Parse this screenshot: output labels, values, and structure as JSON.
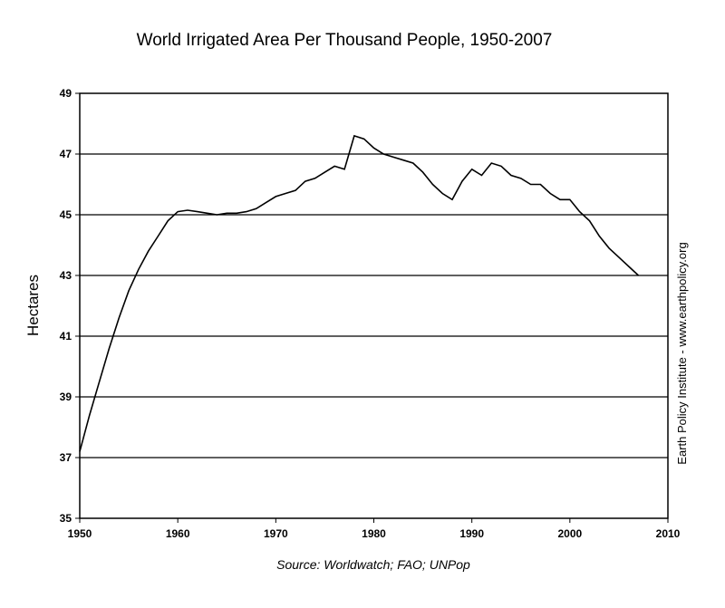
{
  "chart_data": {
    "type": "line",
    "title": "World Irrigated Area Per Thousand People, 1950-2007",
    "xlabel": "",
    "ylabel": "Hectares",
    "source": "Source: Worldwatch; FAO; UNPop",
    "credit": "Earth Policy Institute - www.earthpolicy.org",
    "xlim": [
      1950,
      2010
    ],
    "ylim": [
      35,
      49
    ],
    "x_ticks": [
      1950,
      1960,
      1970,
      1980,
      1990,
      2000,
      2010
    ],
    "y_ticks": [
      35,
      37,
      39,
      41,
      43,
      45,
      47,
      49
    ],
    "grid": "horizontal",
    "series": [
      {
        "color": "#000000",
        "x": [
          1950,
          1951,
          1952,
          1953,
          1954,
          1955,
          1956,
          1957,
          1958,
          1959,
          1960,
          1961,
          1962,
          1963,
          1964,
          1965,
          1966,
          1967,
          1968,
          1969,
          1970,
          1971,
          1972,
          1973,
          1974,
          1975,
          1976,
          1977,
          1978,
          1979,
          1980,
          1981,
          1982,
          1983,
          1984,
          1985,
          1986,
          1987,
          1988,
          1989,
          1990,
          1991,
          1992,
          1993,
          1994,
          1995,
          1996,
          1997,
          1998,
          1999,
          2000,
          2001,
          2002,
          2003,
          2004,
          2005,
          2006,
          2007
        ],
        "values": [
          37.2,
          38.4,
          39.5,
          40.6,
          41.6,
          42.5,
          43.2,
          43.8,
          44.3,
          44.8,
          45.1,
          45.15,
          45.1,
          45.05,
          45.0,
          45.05,
          45.05,
          45.1,
          45.2,
          45.4,
          45.6,
          45.7,
          45.8,
          46.1,
          46.2,
          46.4,
          46.6,
          46.5,
          47.6,
          47.5,
          47.2,
          47.0,
          46.9,
          46.8,
          46.7,
          46.4,
          46.0,
          45.7,
          45.5,
          46.1,
          46.5,
          46.3,
          46.7,
          46.6,
          46.3,
          46.2,
          46.0,
          46.0,
          45.7,
          45.5,
          45.5,
          45.1,
          44.8,
          44.3,
          43.9,
          43.6,
          43.3,
          43.0
        ]
      }
    ]
  }
}
